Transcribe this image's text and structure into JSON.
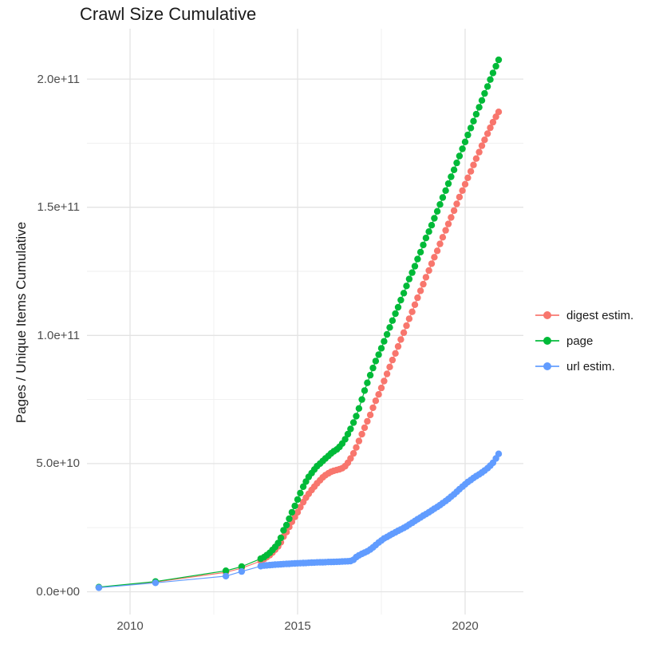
{
  "title": "Crawl Size Cumulative",
  "axes": {
    "y_title": "Pages / Unique Items Cumulative",
    "x_ticks": [
      {
        "label": "2010",
        "year": 2010
      },
      {
        "label": "2015",
        "year": 2015
      },
      {
        "label": "2020",
        "year": 2020
      }
    ],
    "x_minor_years": [
      2012.5,
      2017.5
    ],
    "y_ticks": [
      {
        "label": "0.0e+00",
        "value_e9": 0
      },
      {
        "label": "5.0e+10",
        "value_e9": 50
      },
      {
        "label": "1.0e+11",
        "value_e9": 100
      },
      {
        "label": "1.5e+11",
        "value_e9": 150
      },
      {
        "label": "2.0e+11",
        "value_e9": 200
      }
    ],
    "y_minor_e9": [
      25,
      75,
      125,
      175
    ]
  },
  "style": {
    "grid_major_color": "#e3e3e3",
    "grid_minor_color": "#efefef",
    "background": "#ffffff"
  },
  "chart_data": {
    "type": "line",
    "title": "Crawl Size Cumulative",
    "xlabel": "",
    "ylabel": "Pages / Unique Items Cumulative",
    "x_range_years": [
      2008.6,
      2021.6
    ],
    "y_range_pages": [
      0,
      207500000000.0
    ],
    "grid": true,
    "legend_position": "right",
    "units_note": "point values are pages in billions (1e9)",
    "series": [
      {
        "name": "digest estim.",
        "color": "#F8766D",
        "points": [
          [
            2009.07,
            1.7
          ],
          [
            2010.76,
            3.8
          ],
          [
            2012.86,
            7.6
          ],
          [
            2013.33,
            9.2
          ],
          [
            2013.9,
            12
          ],
          [
            2014.0,
            12.8
          ],
          [
            2014.08,
            13.5
          ],
          [
            2014.17,
            14.3
          ],
          [
            2014.25,
            15.3
          ],
          [
            2014.33,
            16.4
          ],
          [
            2014.42,
            17.7
          ],
          [
            2014.5,
            19.3
          ],
          [
            2014.58,
            21.5
          ],
          [
            2014.67,
            23.3
          ],
          [
            2014.75,
            25.3
          ],
          [
            2014.83,
            27.3
          ],
          [
            2014.92,
            29.2
          ],
          [
            2015.0,
            31
          ],
          [
            2015.08,
            33
          ],
          [
            2015.17,
            35
          ],
          [
            2015.25,
            36.7
          ],
          [
            2015.33,
            38.2
          ],
          [
            2015.42,
            39.7
          ],
          [
            2015.5,
            41
          ],
          [
            2015.58,
            42.3
          ],
          [
            2015.67,
            43.5
          ],
          [
            2015.75,
            44.6
          ],
          [
            2015.83,
            45.5
          ],
          [
            2015.92,
            46.2
          ],
          [
            2016.0,
            46.8
          ],
          [
            2016.08,
            47.2
          ],
          [
            2016.17,
            47.5
          ],
          [
            2016.25,
            47.8
          ],
          [
            2016.33,
            48.2
          ],
          [
            2016.42,
            49
          ],
          [
            2016.5,
            50.3
          ],
          [
            2016.58,
            52
          ],
          [
            2016.67,
            54
          ],
          [
            2016.75,
            56.3
          ],
          [
            2016.83,
            58.8
          ],
          [
            2016.92,
            61.5
          ],
          [
            2017.0,
            64
          ],
          [
            2017.08,
            66.5
          ],
          [
            2017.17,
            69
          ],
          [
            2017.25,
            71.8
          ],
          [
            2017.33,
            74.5
          ],
          [
            2017.42,
            77
          ],
          [
            2017.5,
            79.5
          ],
          [
            2017.58,
            82.2
          ],
          [
            2017.67,
            85
          ],
          [
            2017.75,
            87.7
          ],
          [
            2017.83,
            90.4
          ],
          [
            2017.92,
            93
          ],
          [
            2018.0,
            95.7
          ],
          [
            2018.08,
            98.4
          ],
          [
            2018.17,
            101.1
          ],
          [
            2018.25,
            103.8
          ],
          [
            2018.33,
            106.5
          ],
          [
            2018.42,
            109.2
          ],
          [
            2018.5,
            112
          ],
          [
            2018.58,
            114.7
          ],
          [
            2018.67,
            117.4
          ],
          [
            2018.75,
            120
          ],
          [
            2018.83,
            122.7
          ],
          [
            2018.92,
            125.3
          ],
          [
            2019.0,
            128
          ],
          [
            2019.08,
            130.5
          ],
          [
            2019.17,
            133
          ],
          [
            2019.25,
            135.7
          ],
          [
            2019.33,
            138.3
          ],
          [
            2019.42,
            141
          ],
          [
            2019.5,
            143.5
          ],
          [
            2019.58,
            146
          ],
          [
            2019.67,
            148.7
          ],
          [
            2019.75,
            151.3
          ],
          [
            2019.83,
            154
          ],
          [
            2019.92,
            156.5
          ],
          [
            2020.0,
            159
          ],
          [
            2020.08,
            161.5
          ],
          [
            2020.17,
            164
          ],
          [
            2020.25,
            166.5
          ],
          [
            2020.33,
            169
          ],
          [
            2020.42,
            171.5
          ],
          [
            2020.5,
            174
          ],
          [
            2020.58,
            176.3
          ],
          [
            2020.67,
            178.7
          ],
          [
            2020.75,
            181
          ],
          [
            2020.83,
            183.2
          ],
          [
            2020.92,
            185.3
          ],
          [
            2021.0,
            187.2
          ]
        ]
      },
      {
        "name": "page",
        "color": "#00BA38",
        "points": [
          [
            2009.07,
            1.8
          ],
          [
            2010.76,
            4.0
          ],
          [
            2012.86,
            8.2
          ],
          [
            2013.33,
            9.8
          ],
          [
            2013.9,
            12.9
          ],
          [
            2014.0,
            13.5
          ],
          [
            2014.08,
            14.3
          ],
          [
            2014.17,
            15.2
          ],
          [
            2014.25,
            16.3
          ],
          [
            2014.33,
            17.5
          ],
          [
            2014.42,
            19
          ],
          [
            2014.5,
            21
          ],
          [
            2014.58,
            24
          ],
          [
            2014.67,
            26
          ],
          [
            2014.75,
            28.5
          ],
          [
            2014.83,
            31
          ],
          [
            2014.92,
            33.5
          ],
          [
            2015.0,
            36
          ],
          [
            2015.08,
            38.5
          ],
          [
            2015.17,
            41
          ],
          [
            2015.25,
            43
          ],
          [
            2015.33,
            44.8
          ],
          [
            2015.42,
            46.3
          ],
          [
            2015.5,
            47.7
          ],
          [
            2015.58,
            49
          ],
          [
            2015.67,
            50
          ],
          [
            2015.75,
            51
          ],
          [
            2015.83,
            52
          ],
          [
            2015.92,
            53
          ],
          [
            2016.0,
            54
          ],
          [
            2016.08,
            54.8
          ],
          [
            2016.17,
            55.5
          ],
          [
            2016.25,
            56.5
          ],
          [
            2016.33,
            57.8
          ],
          [
            2016.42,
            59.5
          ],
          [
            2016.5,
            61.5
          ],
          [
            2016.58,
            63.5
          ],
          [
            2016.67,
            66
          ],
          [
            2016.75,
            68.5
          ],
          [
            2016.83,
            71.5
          ],
          [
            2016.92,
            75
          ],
          [
            2017.0,
            78.5
          ],
          [
            2017.08,
            81.5
          ],
          [
            2017.17,
            84.5
          ],
          [
            2017.25,
            87.3
          ],
          [
            2017.33,
            90
          ],
          [
            2017.42,
            92.5
          ],
          [
            2017.5,
            95
          ],
          [
            2017.58,
            97.7
          ],
          [
            2017.67,
            100.4
          ],
          [
            2017.75,
            103.1
          ],
          [
            2017.83,
            105.8
          ],
          [
            2017.92,
            108.5
          ],
          [
            2018.0,
            111
          ],
          [
            2018.08,
            113.8
          ],
          [
            2018.17,
            116.5
          ],
          [
            2018.25,
            119.3
          ],
          [
            2018.33,
            122
          ],
          [
            2018.42,
            124.5
          ],
          [
            2018.5,
            127
          ],
          [
            2018.58,
            129.8
          ],
          [
            2018.67,
            132.5
          ],
          [
            2018.75,
            135.3
          ],
          [
            2018.83,
            138
          ],
          [
            2018.92,
            140.5
          ],
          [
            2019.0,
            143
          ],
          [
            2019.08,
            145.7
          ],
          [
            2019.17,
            148.4
          ],
          [
            2019.25,
            151.1
          ],
          [
            2019.33,
            153.8
          ],
          [
            2019.42,
            156.5
          ],
          [
            2019.5,
            159.2
          ],
          [
            2019.58,
            161.9
          ],
          [
            2019.67,
            164.6
          ],
          [
            2019.75,
            167.3
          ],
          [
            2019.83,
            170
          ],
          [
            2019.92,
            172.8
          ],
          [
            2020.0,
            175.5
          ],
          [
            2020.08,
            178.2
          ],
          [
            2020.17,
            180.9
          ],
          [
            2020.25,
            183.6
          ],
          [
            2020.33,
            186.3
          ],
          [
            2020.42,
            189
          ],
          [
            2020.5,
            191.7
          ],
          [
            2020.58,
            194.4
          ],
          [
            2020.67,
            197.1
          ],
          [
            2020.75,
            199.8
          ],
          [
            2020.83,
            202.4
          ],
          [
            2020.92,
            205
          ],
          [
            2021.0,
            207.5
          ]
        ]
      },
      {
        "name": "url estim.",
        "color": "#619CFF",
        "points": [
          [
            2009.07,
            1.6
          ],
          [
            2010.76,
            3.5
          ],
          [
            2012.86,
            6.1
          ],
          [
            2013.33,
            7.9
          ],
          [
            2013.9,
            10
          ],
          [
            2014.0,
            10.2
          ],
          [
            2014.08,
            10.3
          ],
          [
            2014.17,
            10.4
          ],
          [
            2014.25,
            10.5
          ],
          [
            2014.33,
            10.6
          ],
          [
            2014.42,
            10.65
          ],
          [
            2014.5,
            10.7
          ],
          [
            2014.58,
            10.8
          ],
          [
            2014.67,
            10.85
          ],
          [
            2014.75,
            10.9
          ],
          [
            2014.83,
            11
          ],
          [
            2014.92,
            11.05
          ],
          [
            2015.0,
            11.1
          ],
          [
            2015.08,
            11.15
          ],
          [
            2015.17,
            11.2
          ],
          [
            2015.25,
            11.25
          ],
          [
            2015.33,
            11.3
          ],
          [
            2015.42,
            11.35
          ],
          [
            2015.5,
            11.4
          ],
          [
            2015.58,
            11.45
          ],
          [
            2015.67,
            11.5
          ],
          [
            2015.75,
            11.5
          ],
          [
            2015.83,
            11.55
          ],
          [
            2015.92,
            11.6
          ],
          [
            2016.0,
            11.6
          ],
          [
            2016.08,
            11.65
          ],
          [
            2016.17,
            11.7
          ],
          [
            2016.25,
            11.75
          ],
          [
            2016.33,
            11.8
          ],
          [
            2016.42,
            11.85
          ],
          [
            2016.5,
            11.9
          ],
          [
            2016.58,
            12
          ],
          [
            2016.67,
            12.5
          ],
          [
            2016.75,
            13.5
          ],
          [
            2016.83,
            14.2
          ],
          [
            2016.92,
            14.8
          ],
          [
            2017.0,
            15.3
          ],
          [
            2017.08,
            15.8
          ],
          [
            2017.17,
            16.5
          ],
          [
            2017.25,
            17.3
          ],
          [
            2017.33,
            18.2
          ],
          [
            2017.42,
            19.2
          ],
          [
            2017.5,
            20
          ],
          [
            2017.58,
            20.8
          ],
          [
            2017.67,
            21.4
          ],
          [
            2017.75,
            22
          ],
          [
            2017.83,
            22.6
          ],
          [
            2017.92,
            23.2
          ],
          [
            2018.0,
            23.8
          ],
          [
            2018.08,
            24.3
          ],
          [
            2018.17,
            24.9
          ],
          [
            2018.25,
            25.5
          ],
          [
            2018.33,
            26.2
          ],
          [
            2018.42,
            26.9
          ],
          [
            2018.5,
            27.6
          ],
          [
            2018.58,
            28.3
          ],
          [
            2018.67,
            29
          ],
          [
            2018.75,
            29.7
          ],
          [
            2018.83,
            30.3
          ],
          [
            2018.92,
            31
          ],
          [
            2019.0,
            31.7
          ],
          [
            2019.08,
            32.4
          ],
          [
            2019.17,
            33.1
          ],
          [
            2019.25,
            33.8
          ],
          [
            2019.33,
            34.6
          ],
          [
            2019.42,
            35.4
          ],
          [
            2019.5,
            36.2
          ],
          [
            2019.58,
            37.1
          ],
          [
            2019.67,
            38
          ],
          [
            2019.75,
            39
          ],
          [
            2019.83,
            40
          ],
          [
            2019.92,
            41
          ],
          [
            2020.0,
            41.9
          ],
          [
            2020.08,
            42.8
          ],
          [
            2020.17,
            43.6
          ],
          [
            2020.25,
            44.4
          ],
          [
            2020.33,
            45.1
          ],
          [
            2020.42,
            45.8
          ],
          [
            2020.5,
            46.5
          ],
          [
            2020.58,
            47.3
          ],
          [
            2020.67,
            48.2
          ],
          [
            2020.75,
            49.2
          ],
          [
            2020.83,
            50.3
          ],
          [
            2020.92,
            52
          ],
          [
            2021.0,
            53.8
          ]
        ]
      }
    ]
  },
  "legend": {
    "items": [
      {
        "label": "digest estim.",
        "color": "#F8766D"
      },
      {
        "label": "page",
        "color": "#00BA38"
      },
      {
        "label": "url estim.",
        "color": "#619CFF"
      }
    ]
  }
}
